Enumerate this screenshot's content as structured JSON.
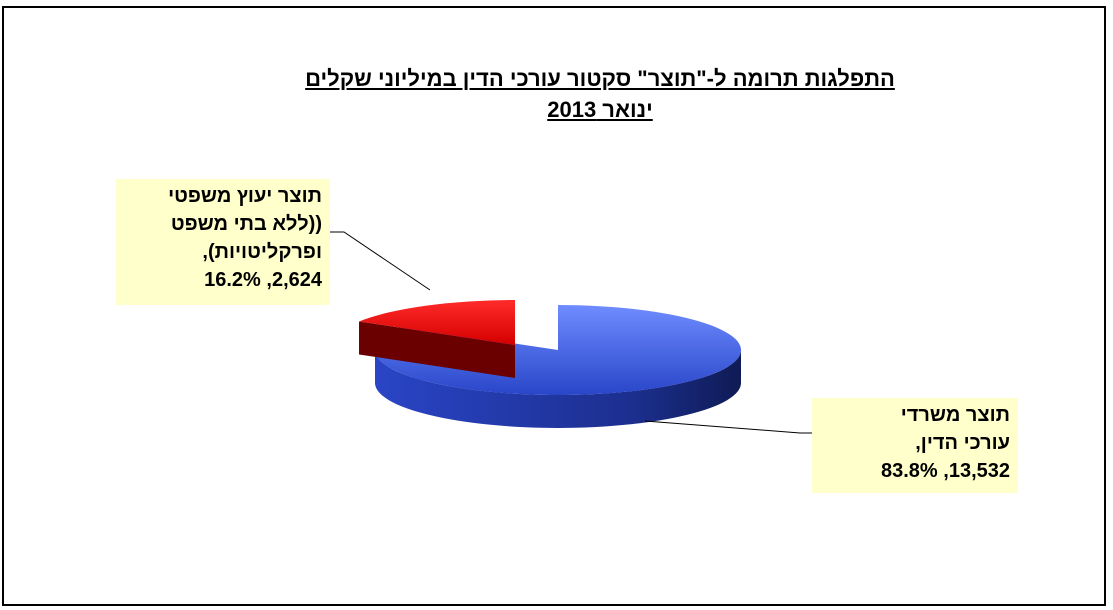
{
  "chart_data": {
    "type": "pie",
    "title": "התפלגות תרומה ל-\"תוצר\" סקטור עורכי הדין  במיליוני שקלים",
    "subtitle": "ינואר 2013",
    "slices": [
      {
        "name_lines": [
          "תוצר משרדי",
          "עורכי הדין,"
        ],
        "value": 13532,
        "value_text": "13,532",
        "percent": 83.8,
        "percent_text": "83.8%",
        "value_line": "83.8% ,13,532",
        "color": "#3355dd"
      },
      {
        "name_lines": [
          "תוצר יעוץ משפטי",
          "((ללא בתי משפט",
          "ופרקליטויות),"
        ],
        "value": 2624,
        "value_text": "2,624",
        "percent": 16.2,
        "percent_text": "16.2%",
        "value_line": "16.2% ,2,624",
        "color": "#ee0000"
      }
    ],
    "style": "3d-exploded-pie",
    "legend": "none"
  }
}
